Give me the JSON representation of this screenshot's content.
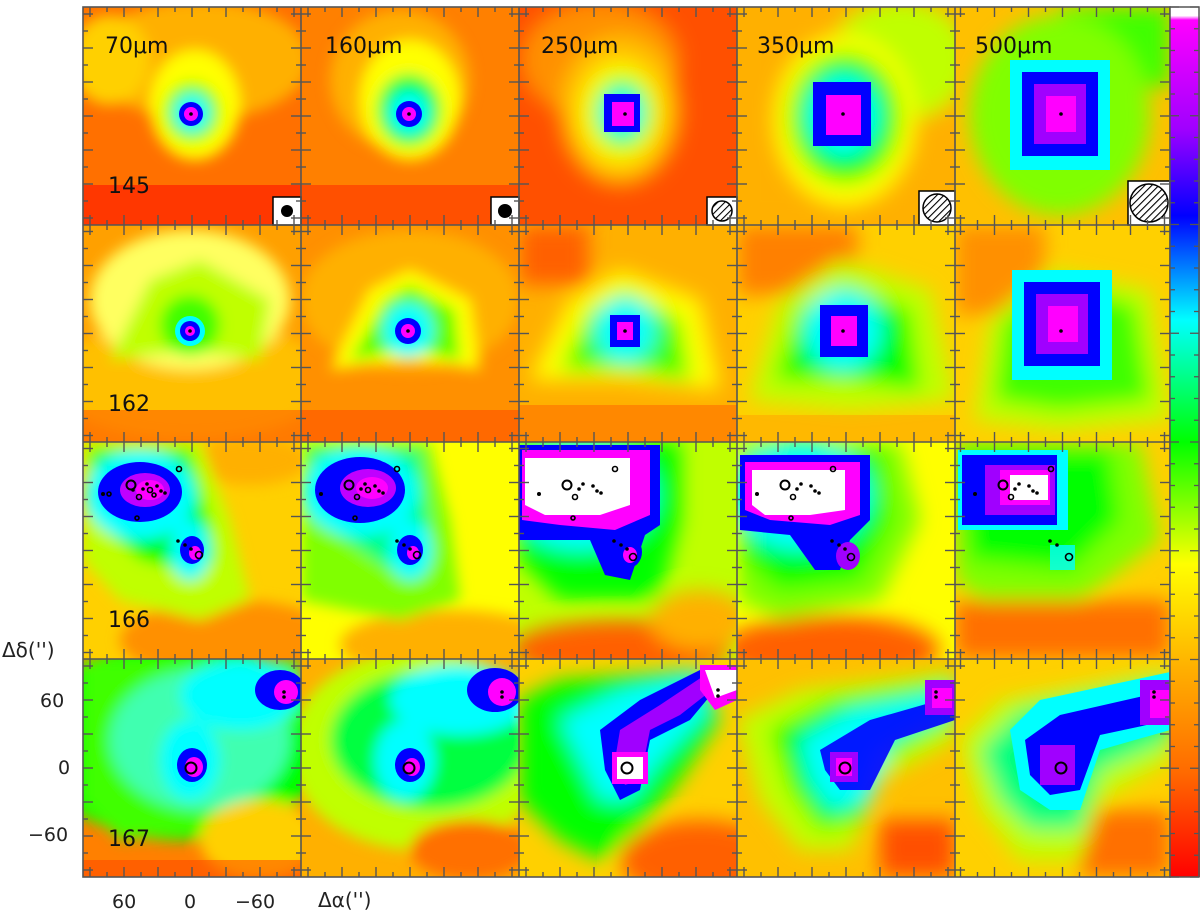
{
  "figure": {
    "wavelengths": [
      "70μm",
      "160μm",
      "250μm",
      "350μm",
      "500μm"
    ],
    "sources": [
      "145",
      "162",
      "166",
      "167"
    ],
    "axis": {
      "y_label": "Δδ('')",
      "x_label": "Δα('')",
      "y_ticks": [
        "60",
        "0",
        "−60"
      ],
      "x_ticks": [
        "60",
        "0",
        "−60"
      ]
    },
    "colorbar": {
      "colors": [
        "#ff0000",
        "#ff6a00",
        "#ffb000",
        "#ffff00",
        "#00ff00",
        "#00ffff",
        "#0000ff",
        "#a000ff",
        "#ff00ff",
        "#ffffff"
      ]
    },
    "beams": [
      {
        "wavelength": "70μm",
        "style": "filled"
      },
      {
        "wavelength": "160μm",
        "style": "filled"
      },
      {
        "wavelength": "250μm",
        "style": "hatched"
      },
      {
        "wavelength": "350μm",
        "style": "hatched"
      },
      {
        "wavelength": "500μm",
        "style": "hatched"
      }
    ]
  }
}
